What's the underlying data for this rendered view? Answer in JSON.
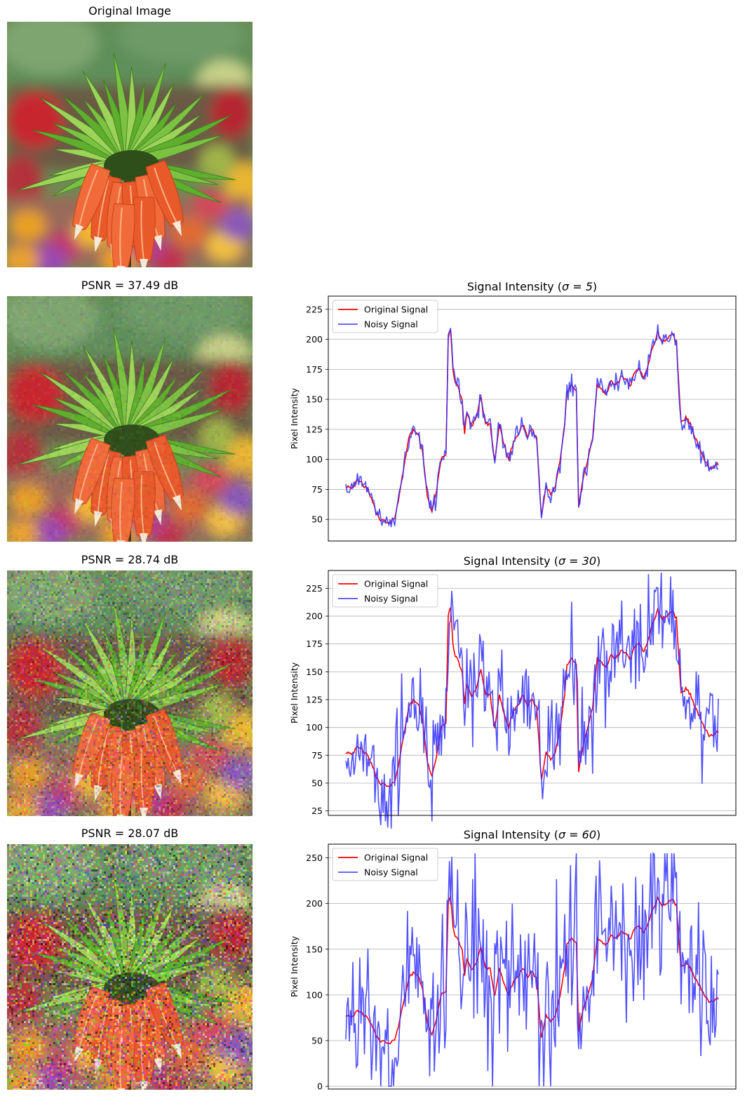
{
  "images": [
    {
      "title": "Original Image",
      "noise": 0
    },
    {
      "title": "PSNR = 37.49 dB",
      "noise": 5
    },
    {
      "title": "PSNR = 28.74 dB",
      "noise": 30
    },
    {
      "title": "PSNR = 28.07 dB",
      "noise": 60
    }
  ],
  "colors": {
    "original": "#ff0000",
    "noisy": "#3333ff",
    "grid": "#b0b0b0"
  },
  "chart_data": [
    {
      "type": "line",
      "title": "Signal Intensity (σ = 5)",
      "title_prefix": "Signal Intensity (",
      "title_sigma": "σ = 5",
      "title_suffix": ")",
      "ylabel": "Pixel Intensity",
      "ylim": [
        32,
        236
      ],
      "yticks": [
        50,
        75,
        100,
        125,
        150,
        175,
        200,
        225
      ],
      "grid": "y",
      "legend": "upper-left",
      "sigma": 5,
      "series": [
        {
          "name": "Original Signal",
          "key": "original"
        },
        {
          "name": "Noisy Signal",
          "key": "noisy"
        }
      ]
    },
    {
      "type": "line",
      "title": "Signal Intensity (σ = 30)",
      "title_prefix": "Signal Intensity (",
      "title_sigma": "σ = 30",
      "title_suffix": ")",
      "ylabel": "Pixel Intensity",
      "ylim": [
        21,
        241
      ],
      "yticks": [
        25,
        50,
        75,
        100,
        125,
        150,
        175,
        200,
        225
      ],
      "grid": "y",
      "legend": "upper-left",
      "sigma": 30,
      "series": [
        {
          "name": "Original Signal",
          "key": "original"
        },
        {
          "name": "Noisy Signal",
          "key": "noisy"
        }
      ]
    },
    {
      "type": "line",
      "title": "Signal Intensity (σ = 60)",
      "title_prefix": "Signal Intensity (",
      "title_sigma": "σ = 60",
      "title_suffix": ")",
      "ylabel": "Pixel Intensity",
      "ylim": [
        -3,
        265
      ],
      "yticks": [
        0,
        50,
        100,
        150,
        200,
        250
      ],
      "grid": "y",
      "legend": "upper-left",
      "sigma": 60,
      "series": [
        {
          "name": "Original Signal",
          "key": "original"
        },
        {
          "name": "Noisy Signal",
          "key": "noisy"
        }
      ]
    }
  ],
  "original_signal_keypoints": [
    [
      0,
      78
    ],
    [
      6,
      77
    ],
    [
      10,
      82
    ],
    [
      14,
      80
    ],
    [
      18,
      75
    ],
    [
      22,
      68
    ],
    [
      26,
      55
    ],
    [
      30,
      50
    ],
    [
      34,
      48
    ],
    [
      38,
      46
    ],
    [
      42,
      52
    ],
    [
      46,
      70
    ],
    [
      50,
      95
    ],
    [
      54,
      118
    ],
    [
      58,
      124
    ],
    [
      62,
      122
    ],
    [
      66,
      105
    ],
    [
      70,
      70
    ],
    [
      74,
      56
    ],
    [
      78,
      75
    ],
    [
      82,
      100
    ],
    [
      86,
      105
    ],
    [
      88,
      200
    ],
    [
      90,
      208
    ],
    [
      92,
      175
    ],
    [
      94,
      165
    ],
    [
      97,
      158
    ],
    [
      100,
      150
    ],
    [
      102,
      120
    ],
    [
      104,
      140
    ],
    [
      108,
      128
    ],
    [
      112,
      135
    ],
    [
      116,
      152
    ],
    [
      120,
      130
    ],
    [
      124,
      128
    ],
    [
      126,
      112
    ],
    [
      128,
      100
    ],
    [
      132,
      128
    ],
    [
      136,
      112
    ],
    [
      140,
      100
    ],
    [
      144,
      115
    ],
    [
      148,
      120
    ],
    [
      152,
      130
    ],
    [
      156,
      118
    ],
    [
      160,
      125
    ],
    [
      164,
      118
    ],
    [
      168,
      52
    ],
    [
      172,
      78
    ],
    [
      176,
      72
    ],
    [
      180,
      78
    ],
    [
      184,
      98
    ],
    [
      188,
      130
    ],
    [
      190,
      155
    ],
    [
      194,
      162
    ],
    [
      198,
      158
    ],
    [
      200,
      60
    ],
    [
      204,
      85
    ],
    [
      208,
      100
    ],
    [
      212,
      118
    ],
    [
      216,
      162
    ],
    [
      220,
      158
    ],
    [
      224,
      155
    ],
    [
      228,
      165
    ],
    [
      232,
      162
    ],
    [
      236,
      168
    ],
    [
      240,
      168
    ],
    [
      244,
      160
    ],
    [
      248,
      172
    ],
    [
      252,
      175
    ],
    [
      256,
      168
    ],
    [
      260,
      180
    ],
    [
      264,
      195
    ],
    [
      268,
      205
    ],
    [
      272,
      198
    ],
    [
      276,
      200
    ],
    [
      280,
      205
    ],
    [
      284,
      198
    ],
    [
      288,
      130
    ],
    [
      292,
      135
    ],
    [
      296,
      130
    ],
    [
      300,
      118
    ],
    [
      304,
      110
    ],
    [
      308,
      100
    ],
    [
      312,
      92
    ],
    [
      316,
      94
    ],
    [
      320,
      96
    ]
  ]
}
